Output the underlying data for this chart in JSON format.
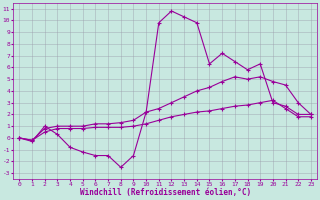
{
  "background_color": "#c8e8e0",
  "grid_color": "#9999aa",
  "line_color": "#990099",
  "xlabel": "Windchill (Refroidissement éolien,°C)",
  "xlim": [
    -0.5,
    23.5
  ],
  "ylim": [
    -3.5,
    11.5
  ],
  "xticks": [
    0,
    1,
    2,
    3,
    4,
    5,
    6,
    7,
    8,
    9,
    10,
    11,
    12,
    13,
    14,
    15,
    16,
    17,
    18,
    19,
    20,
    21,
    22,
    23
  ],
  "yticks": [
    -3,
    -2,
    -1,
    0,
    1,
    2,
    3,
    4,
    5,
    6,
    7,
    8,
    9,
    10,
    11
  ],
  "s1y": [
    0,
    -0.3,
    1.0,
    0.3,
    -0.8,
    -1.2,
    -1.5,
    -1.5,
    -2.5,
    -1.5,
    2.2,
    9.8,
    10.8,
    10.3,
    9.8,
    6.3,
    7.2,
    6.5,
    5.8,
    6.3,
    3.0,
    2.7,
    2.0,
    2.0
  ],
  "s2y": [
    0,
    -0.2,
    0.8,
    1.0,
    1.0,
    1.0,
    1.2,
    1.2,
    1.3,
    1.5,
    2.2,
    2.5,
    3.0,
    3.5,
    4.0,
    4.3,
    4.8,
    5.2,
    5.0,
    5.2,
    4.8,
    4.5,
    3.0,
    2.0
  ],
  "s3y": [
    0,
    -0.2,
    0.5,
    0.8,
    0.8,
    0.8,
    0.9,
    0.9,
    0.9,
    1.0,
    1.2,
    1.5,
    1.8,
    2.0,
    2.2,
    2.3,
    2.5,
    2.7,
    2.8,
    3.0,
    3.2,
    2.5,
    1.8,
    1.8
  ],
  "xlabel_fontsize": 5.5,
  "tick_fontsize": 4.5,
  "linewidth": 0.8,
  "markersize": 2.5
}
